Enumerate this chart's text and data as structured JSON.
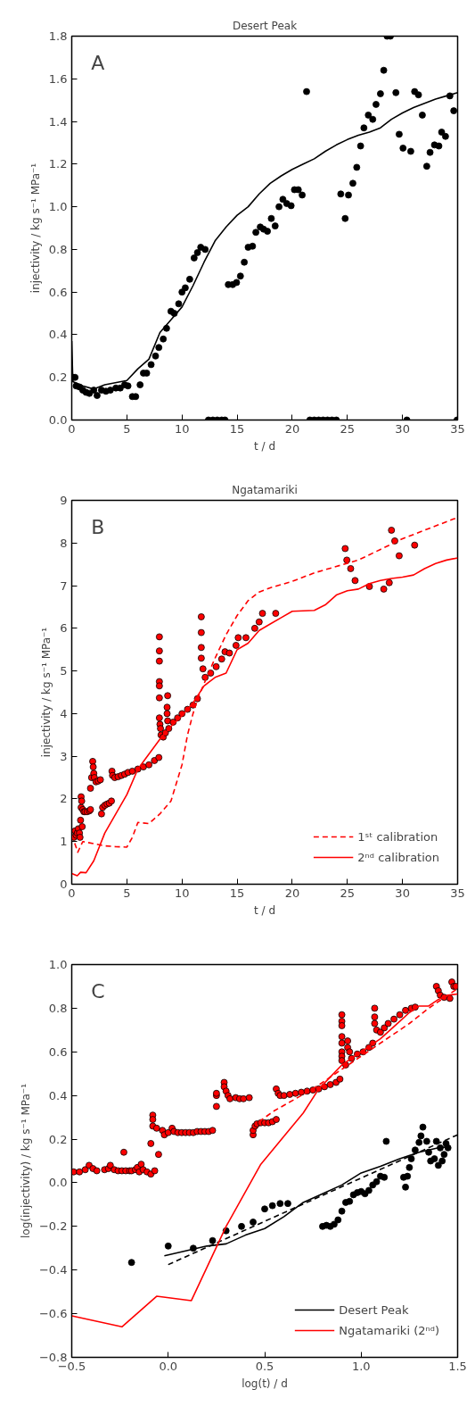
{
  "chart_data": [
    {
      "type": "scatter",
      "title": "Desert Peak",
      "xlabel": "t / d",
      "ylabel": "injectivity / kg s⁻¹ MPa⁻¹",
      "annotations": [
        "A"
      ],
      "xlim": [
        0,
        35
      ],
      "ylim": [
        0,
        1.8
      ],
      "xticks": [
        0,
        5,
        10,
        15,
        20,
        25,
        30,
        35
      ],
      "yticks": [
        {
          "value": 0,
          "label": "0.0"
        },
        0.2,
        0.4,
        0.6,
        0.8,
        {
          "value": 1,
          "label": "1.0"
        },
        1.2,
        1.4,
        1.6,
        1.8
      ],
      "grid": false,
      "series": [
        {
          "marker": "circle",
          "color": "#000000",
          "x": [
            0.13,
            0.3,
            0.4,
            0.7,
            1.0,
            1.3,
            1.6,
            2.0,
            2.3,
            2.7,
            3.1,
            3.5,
            4.0,
            4.4,
            4.8,
            5.1,
            5.5,
            5.8,
            6.2,
            6.5,
            6.8,
            7.2,
            7.6,
            7.9,
            8.3,
            8.6,
            9.0,
            9.3,
            9.7,
            10.0,
            10.3,
            10.7,
            11.1,
            11.4,
            11.7,
            12.1,
            12.4,
            12.8,
            13.2,
            13.6,
            13.9,
            14.2,
            14.6,
            14.95,
            15.3,
            15.65,
            16.0,
            16.4,
            16.7,
            17.1,
            17.4,
            17.75,
            18.1,
            18.45,
            18.8,
            19.15,
            19.5,
            19.9,
            20.2,
            20.55,
            20.9,
            21.3,
            21.6,
            22.0,
            22.4,
            22.8,
            23.2,
            23.6,
            24.0,
            24.4,
            24.8,
            25.1,
            25.5,
            25.85,
            26.2,
            26.5,
            26.9,
            27.3,
            27.6,
            28.0,
            28.3,
            28.6,
            28.9,
            29.4,
            29.7,
            30.05,
            30.4,
            30.75,
            31.1,
            31.45,
            31.8,
            32.2,
            32.5,
            32.9,
            33.3,
            33.55,
            33.9,
            34.3,
            34.65,
            34.95
          ],
          "values": [
            0.2,
            0.2,
            0.16,
            0.155,
            0.14,
            0.13,
            0.125,
            0.14,
            0.115,
            0.14,
            0.135,
            0.14,
            0.15,
            0.15,
            0.165,
            0.16,
            0.11,
            0.11,
            0.165,
            0.22,
            0.22,
            0.26,
            0.3,
            0.34,
            0.38,
            0.43,
            0.51,
            0.5,
            0.545,
            0.6,
            0.62,
            0.66,
            0.76,
            0.785,
            0.81,
            0.8,
            0,
            0,
            0,
            0,
            0,
            0.635,
            0.635,
            0.645,
            0.675,
            0.74,
            0.81,
            0.815,
            0.88,
            0.905,
            0.895,
            0.885,
            0.945,
            0.91,
            1.0,
            1.035,
            1.015,
            1.005,
            1.08,
            1.08,
            1.055,
            1.54,
            0,
            0,
            0,
            0,
            0,
            0,
            0,
            1.06,
            0.945,
            1.055,
            1.11,
            1.185,
            1.285,
            1.37,
            1.43,
            1.41,
            1.48,
            1.53,
            1.64,
            1.8,
            1.8,
            1.535,
            1.34,
            1.275,
            0,
            1.26,
            1.54,
            1.525,
            1.43,
            1.19,
            1.255,
            1.29,
            1.285,
            1.35,
            1.33,
            1.52,
            1.45,
            0
          ]
        },
        {
          "type": "line",
          "line_style": "solid",
          "color": "#000000",
          "x": [
            0,
            0.1,
            1,
            2,
            3,
            5,
            6,
            7,
            8,
            9,
            10,
            11,
            12,
            13,
            14,
            15,
            16,
            17,
            18,
            19,
            20,
            21,
            22,
            23,
            24,
            25,
            26,
            27,
            28,
            29,
            30,
            31,
            32,
            33,
            34,
            35
          ],
          "values": [
            0.37,
            0.18,
            0.16,
            0.145,
            0.165,
            0.185,
            0.24,
            0.285,
            0.41,
            0.47,
            0.53,
            0.63,
            0.74,
            0.84,
            0.905,
            0.96,
            1.0,
            1.06,
            1.11,
            1.145,
            1.175,
            1.2,
            1.225,
            1.26,
            1.29,
            1.315,
            1.335,
            1.35,
            1.37,
            1.41,
            1.44,
            1.465,
            1.485,
            1.505,
            1.52,
            1.535
          ]
        }
      ]
    },
    {
      "type": "scatter",
      "title": "Ngatamariki",
      "xlabel": "t / d",
      "ylabel": "injectivity / kg s⁻¹ MPa⁻¹",
      "annotations": [
        "B"
      ],
      "xlim": [
        0,
        35
      ],
      "ylim": [
        0,
        9
      ],
      "xticks": [
        0,
        5,
        10,
        15,
        20,
        25,
        30,
        35
      ],
      "yticks": [
        0,
        1,
        2,
        3,
        4,
        5,
        6,
        7,
        8,
        9
      ],
      "grid": false,
      "legend": "bottom right",
      "series": [
        {
          "marker": "circle",
          "color": "#ff0000",
          "x": [
            0.2,
            0.3,
            0.4,
            0.5,
            0.6,
            0.7,
            0.75,
            0.8,
            0.85,
            0.85,
            0.9,
            0.95,
            1.0,
            1.1,
            1.2,
            1.4,
            1.6,
            1.7,
            1.7,
            1.8,
            1.9,
            1.95,
            2.0,
            2.05,
            2.2,
            2.4,
            2.6,
            2.7,
            2.8,
            3.0,
            3.2,
            3.4,
            3.6,
            3.65,
            3.7,
            3.9,
            4.2,
            4.5,
            4.8,
            5.1,
            5.5,
            6.0,
            6.5,
            7.0,
            7.5,
            7.9,
            7.95,
            7.95,
            7.95,
            7.95,
            7.95,
            7.95,
            7.95,
            8.0,
            8.05,
            8.1,
            8.3,
            8.5,
            8.7,
            8.65,
            8.65,
            8.7,
            8.8,
            9.2,
            9.6,
            10.0,
            10.5,
            11.0,
            11.4,
            11.75,
            11.75,
            11.75,
            11.75,
            11.9,
            12.1,
            12.6,
            13.1,
            13.6,
            13.9,
            14.3,
            14.9,
            15.1,
            15.8,
            16.6,
            17.0,
            17.3,
            18.5,
            24.8,
            24.95,
            25.3,
            25.7,
            27.0,
            28.3,
            28.8,
            29.0,
            29.3,
            29.7,
            31.1
          ],
          "values": [
            1.1,
            1.25,
            1.15,
            1.2,
            1.3,
            1.2,
            1.1,
            1.5,
            1.8,
            2.05,
            1.95,
            1.35,
            1.75,
            1.7,
            1.7,
            1.7,
            1.72,
            1.75,
            2.25,
            2.5,
            2.88,
            2.75,
            2.6,
            2.5,
            2.4,
            2.42,
            2.45,
            1.65,
            1.8,
            1.85,
            1.88,
            1.9,
            1.95,
            2.65,
            2.55,
            2.5,
            2.52,
            2.55,
            2.58,
            2.62,
            2.65,
            2.7,
            2.75,
            2.8,
            2.9,
            2.97,
            5.8,
            5.47,
            5.23,
            4.75,
            4.65,
            4.37,
            3.9,
            3.75,
            3.65,
            3.5,
            3.45,
            3.55,
            4.42,
            4.15,
            4.0,
            3.83,
            3.65,
            3.8,
            3.9,
            4.0,
            4.1,
            4.2,
            4.35,
            6.27,
            5.9,
            5.55,
            5.3,
            5.05,
            4.85,
            4.95,
            5.1,
            5.28,
            5.45,
            5.42,
            5.6,
            5.78,
            5.78,
            6.0,
            6.15,
            6.35,
            6.35,
            7.87,
            7.6,
            7.4,
            7.12,
            6.98,
            6.92,
            7.07,
            8.3,
            8.05,
            7.7,
            7.95
          ]
        },
        {
          "type": "line",
          "name": "1ˢᵗ calibration",
          "line_style": "dashed",
          "color": "#ff0000",
          "x": [
            0.27,
            0.55,
            1,
            2,
            3,
            4,
            5,
            5.5,
            6,
            7,
            8,
            9,
            10,
            10.5,
            11,
            11.5,
            12,
            13,
            14,
            15,
            16,
            17,
            18,
            20,
            22,
            24,
            26,
            28,
            30,
            32,
            35
          ],
          "values": [
            0.96,
            0.75,
            1.0,
            0.95,
            0.9,
            0.88,
            0.87,
            1.1,
            1.45,
            1.42,
            1.65,
            1.95,
            2.8,
            3.5,
            4.0,
            4.4,
            4.7,
            5.3,
            5.85,
            6.3,
            6.65,
            6.85,
            6.95,
            7.1,
            7.3,
            7.45,
            7.6,
            7.85,
            8.1,
            8.3,
            8.6
          ]
        },
        {
          "type": "line",
          "name": "2ⁿᵈ calibration",
          "line_style": "solid",
          "color": "#ff0000",
          "x": [
            0,
            0.5,
            0.8,
            1.3,
            2,
            3,
            4,
            5,
            6,
            7,
            8,
            9,
            10,
            11,
            12,
            13,
            14,
            15,
            16,
            17,
            18,
            19,
            20,
            22,
            23,
            24,
            25,
            26,
            27,
            28,
            29,
            30,
            31,
            32,
            33,
            34,
            35
          ],
          "values": [
            0.25,
            0.2,
            0.28,
            0.27,
            0.55,
            1.2,
            1.65,
            2.1,
            2.7,
            3.05,
            3.4,
            3.7,
            3.95,
            4.25,
            4.65,
            4.85,
            4.95,
            5.5,
            5.65,
            5.95,
            6.1,
            6.25,
            6.4,
            6.42,
            6.55,
            6.78,
            6.88,
            6.92,
            7.05,
            7.12,
            7.17,
            7.2,
            7.25,
            7.4,
            7.52,
            7.6,
            7.65
          ]
        }
      ]
    },
    {
      "type": "scatter",
      "xlabel": "log(t) / d",
      "ylabel": "log(injectivity) / kg s⁻¹ MPa⁻¹",
      "annotations": [
        "C"
      ],
      "xlim": [
        -0.5,
        1.5
      ],
      "ylim": [
        -0.8,
        1.0
      ],
      "xticks": [
        {
          "value": -0.5,
          "label": "−0.5"
        },
        {
          "value": 0,
          "label": "0.0"
        },
        0.5,
        {
          "value": 1,
          "label": "1.0"
        },
        1.5
      ],
      "yticks": [
        {
          "value": -0.8,
          "label": "−0.8"
        },
        {
          "value": -0.6,
          "label": "−0.6"
        },
        {
          "value": -0.4,
          "label": "−0.4"
        },
        {
          "value": -0.2,
          "label": "−0.2"
        },
        {
          "value": 0,
          "label": "0.0"
        },
        0.2,
        0.4,
        0.6,
        0.8,
        {
          "value": 1,
          "label": "1.0"
        }
      ],
      "grid": false,
      "legend": "bottom right",
      "series": [
        {
          "marker": "circle",
          "color": "#ff0000",
          "x": [
            -0.49,
            -0.46,
            -0.43,
            -0.41,
            -0.39,
            -0.37,
            -0.33,
            -0.31,
            -0.3,
            -0.28,
            -0.26,
            -0.24,
            -0.22,
            -0.2,
            -0.19,
            -0.23,
            -0.17,
            -0.16,
            -0.15,
            -0.14,
            -0.13,
            -0.11,
            -0.09,
            -0.07,
            -0.09,
            -0.08,
            -0.08,
            -0.08,
            -0.05,
            -0.06,
            -0.03,
            -0.02,
            0.0,
            0.02,
            0.03,
            0.05,
            0.07,
            0.09,
            0.11,
            0.13,
            0.15,
            0.17,
            0.19,
            0.21,
            0.23,
            0.25,
            0.25,
            0.25,
            0.29,
            0.29,
            0.3,
            0.31,
            0.32,
            0.35,
            0.37,
            0.39,
            0.42,
            0.44,
            0.44,
            0.45,
            0.46,
            0.48,
            0.5,
            0.52,
            0.54,
            0.56,
            0.56,
            0.57,
            0.58,
            0.6,
            0.63,
            0.66,
            0.69,
            0.72,
            0.75,
            0.78,
            0.81,
            0.84,
            0.87,
            0.89,
            0.9,
            0.9,
            0.9,
            0.9,
            0.9,
            0.9,
            0.9,
            0.9,
            0.92,
            0.93,
            0.93,
            0.94,
            0.95,
            0.98,
            1.01,
            1.04,
            1.06,
            1.07,
            1.07,
            1.07,
            1.08,
            1.1,
            1.12,
            1.14,
            1.17,
            1.2,
            1.23,
            1.26,
            1.28,
            1.39,
            1.4,
            1.41,
            1.43,
            1.46,
            1.47,
            1.48,
            1.49
          ],
          "values": [
            0.05,
            0.05,
            0.06,
            0.08,
            0.065,
            0.055,
            0.06,
            0.065,
            0.08,
            0.06,
            0.055,
            0.055,
            0.055,
            0.055,
            0.055,
            0.14,
            0.06,
            0.07,
            0.05,
            0.085,
            0.06,
            0.05,
            0.04,
            0.055,
            0.18,
            0.31,
            0.29,
            0.26,
            0.13,
            0.25,
            0.24,
            0.22,
            0.23,
            0.25,
            0.235,
            0.23,
            0.23,
            0.23,
            0.23,
            0.23,
            0.235,
            0.235,
            0.235,
            0.235,
            0.24,
            0.35,
            0.4,
            0.41,
            0.46,
            0.44,
            0.42,
            0.4,
            0.385,
            0.39,
            0.385,
            0.385,
            0.39,
            0.22,
            0.24,
            0.26,
            0.27,
            0.275,
            0.275,
            0.275,
            0.28,
            0.29,
            0.43,
            0.41,
            0.4,
            0.4,
            0.405,
            0.41,
            0.415,
            0.42,
            0.425,
            0.43,
            0.44,
            0.45,
            0.46,
            0.475,
            0.77,
            0.74,
            0.72,
            0.67,
            0.64,
            0.6,
            0.58,
            0.56,
            0.54,
            0.65,
            0.62,
            0.6,
            0.57,
            0.59,
            0.6,
            0.62,
            0.64,
            0.8,
            0.76,
            0.73,
            0.7,
            0.69,
            0.71,
            0.73,
            0.75,
            0.77,
            0.79,
            0.8,
            0.805,
            0.9,
            0.88,
            0.86,
            0.85,
            0.845,
            0.92,
            0.9,
            0.9
          ]
        },
        {
          "marker": "circle",
          "color": "#000000",
          "x": [
            -0.19,
            0.0,
            0.13,
            0.23,
            0.3,
            0.38,
            0.44,
            0.5,
            0.54,
            0.58,
            0.62,
            0.8,
            0.82,
            0.84,
            0.86,
            0.88,
            0.9,
            0.92,
            0.94,
            0.96,
            0.98,
            1.0,
            1.02,
            1.04,
            1.06,
            1.08,
            1.1,
            1.12,
            1.13,
            1.22,
            1.23,
            1.24,
            1.25,
            1.26,
            1.28,
            1.3,
            1.31,
            1.32,
            1.34,
            1.35,
            1.36,
            1.38,
            1.39,
            1.4,
            1.41,
            1.42,
            1.43,
            1.44,
            1.45
          ],
          "values": [
            -0.365,
            -0.29,
            -0.3,
            -0.265,
            -0.22,
            -0.2,
            -0.18,
            -0.12,
            -0.105,
            -0.095,
            -0.095,
            -0.2,
            -0.195,
            -0.2,
            -0.19,
            -0.17,
            -0.13,
            -0.09,
            -0.085,
            -0.055,
            -0.045,
            -0.04,
            -0.05,
            -0.035,
            -0.01,
            0.005,
            0.03,
            0.025,
            0.19,
            0.025,
            -0.02,
            0.03,
            0.07,
            0.11,
            0.15,
            0.185,
            0.215,
            0.255,
            0.19,
            0.14,
            0.1,
            0.11,
            0.19,
            0.08,
            0.16,
            0.1,
            0.13,
            0.18,
            0.16
          ]
        },
        {
          "type": "line",
          "name": "Desert Peak",
          "line_style": "solid",
          "color": "#000000",
          "x": [
            -0.02,
            0.1,
            0.2,
            0.3,
            0.4,
            0.5,
            0.6,
            0.7,
            0.8,
            0.9,
            1.0,
            1.1,
            1.2,
            1.3,
            1.4,
            1.45
          ],
          "values": [
            -0.335,
            -0.31,
            -0.29,
            -0.28,
            -0.24,
            -0.21,
            -0.155,
            -0.09,
            -0.05,
            -0.01,
            0.045,
            0.075,
            0.11,
            0.14,
            0.16,
            0.165
          ]
        },
        {
          "type": "line",
          "line_style": "dashed",
          "color": "#000000",
          "x": [
            0.0,
            1.5
          ],
          "values": [
            -0.375,
            0.22
          ]
        },
        {
          "type": "line",
          "name": "Ngatamariki (2ⁿᵈ)",
          "line_style": "solid",
          "color": "#ff0000",
          "x": [
            -0.5,
            -0.24,
            -0.06,
            0.12,
            0.3,
            0.48,
            0.7,
            0.78,
            0.9,
            1.0,
            1.1,
            1.2,
            1.25,
            1.3,
            1.35,
            1.4,
            1.45,
            1.5
          ],
          "values": [
            -0.61,
            -0.66,
            -0.52,
            -0.54,
            -0.2,
            0.085,
            0.32,
            0.43,
            0.54,
            0.6,
            0.66,
            0.74,
            0.78,
            0.81,
            0.81,
            0.84,
            0.86,
            0.865
          ]
        },
        {
          "type": "line",
          "line_style": "dashed",
          "color": "#ff0000",
          "x": [
            0.47,
            0.55,
            0.65,
            0.75,
            0.85,
            0.95,
            1.05,
            1.15,
            1.25,
            1.35,
            1.45,
            1.5
          ],
          "values": [
            0.28,
            0.33,
            0.38,
            0.43,
            0.49,
            0.55,
            0.61,
            0.67,
            0.73,
            0.8,
            0.86,
            0.89
          ]
        }
      ]
    }
  ]
}
